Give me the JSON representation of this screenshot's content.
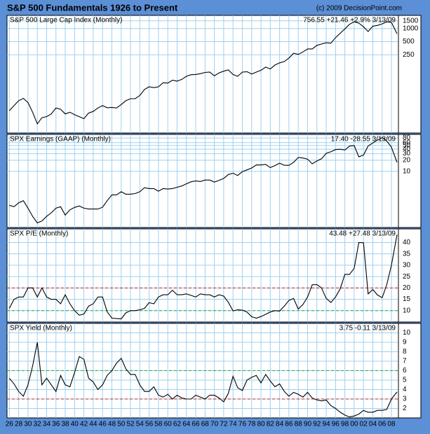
{
  "title": "S&P 500 Fundamentals 1926 to Present",
  "copyright": "(c) 2009 DecisionPoint.com",
  "chart_data": [
    {
      "type": "line",
      "title": "S&P 500 Large Cap Index (Monthly)",
      "readout": "756.55 +21.46 +2.9% 3/13/09",
      "log": true,
      "color": "#000000",
      "x": [
        1926,
        1927,
        1928,
        1929,
        1930,
        1931,
        1932,
        1933,
        1934,
        1935,
        1936,
        1937,
        1938,
        1939,
        1940,
        1941,
        1942,
        1943,
        1944,
        1945,
        1946,
        1947,
        1948,
        1949,
        1950,
        1951,
        1952,
        1953,
        1954,
        1955,
        1956,
        1957,
        1958,
        1959,
        1960,
        1961,
        1962,
        1963,
        1964,
        1965,
        1966,
        1967,
        1968,
        1969,
        1970,
        1971,
        1972,
        1973,
        1974,
        1975,
        1976,
        1977,
        1978,
        1979,
        1980,
        1981,
        1982,
        1983,
        1984,
        1985,
        1986,
        1987,
        1988,
        1989,
        1990,
        1991,
        1992,
        1993,
        1994,
        1995,
        1996,
        1997,
        1998,
        1999,
        2000,
        2001,
        2002,
        2003,
        2004,
        2005,
        2006,
        2007,
        2008,
        2009.2
      ],
      "values": [
        13,
        17,
        22,
        25,
        20,
        12,
        6.5,
        9,
        9.5,
        11,
        15,
        14,
        11,
        12,
        10.5,
        9.5,
        8.5,
        11.5,
        12.5,
        15,
        17,
        15.2,
        15.5,
        15,
        18,
        22,
        24.5,
        24.5,
        29,
        40,
        46,
        44,
        46,
        57,
        56,
        65,
        62,
        68,
        80,
        87,
        88,
        92,
        98,
        100,
        82,
        96,
        105,
        112,
        88,
        80,
        100,
        102,
        90,
        100,
        110,
        130,
        118,
        145,
        163,
        175,
        210,
        270,
        255,
        290,
        340,
        340,
        410,
        440,
        470,
        460,
        620,
        780,
        980,
        1250,
        1430,
        1330,
        1100,
        850,
        1130,
        1180,
        1280,
        1420,
        1380,
        756.55
      ],
      "ylim": [
        4,
        2000
      ],
      "yticks": [
        250,
        500,
        1000,
        1500
      ],
      "grid": true
    },
    {
      "type": "line",
      "title": "SPX Earnings (GAAP) (Monthly)",
      "readout": "17.40 -28.55 3/13/09",
      "log": true,
      "color": "#000000",
      "values": [
        1.2,
        1.1,
        1.4,
        1.6,
        1.0,
        0.6,
        0.4,
        0.45,
        0.6,
        0.75,
        1.0,
        1.1,
        0.65,
        0.9,
        1.05,
        1.15,
        1.0,
        0.95,
        0.95,
        0.95,
        1.06,
        1.6,
        2.3,
        2.3,
        2.8,
        2.4,
        2.4,
        2.5,
        2.8,
        3.6,
        3.4,
        3.4,
        2.9,
        3.4,
        3.3,
        3.4,
        3.7,
        4.0,
        4.6,
        5.2,
        5.5,
        5.3,
        5.8,
        5.8,
        5.1,
        5.7,
        6.4,
        8.2,
        8.9,
        7.7,
        9.8,
        10.9,
        12.3,
        14.9,
        14.8,
        15.4,
        12.6,
        14.3,
        16.6,
        14.6,
        14.5,
        17.5,
        23.8,
        22.9,
        21.3,
        15.9,
        19.1,
        21.9,
        30.6,
        33.9,
        38.7,
        39.7,
        37.7,
        48.2,
        50.0,
        24.7,
        27.6,
        48.7,
        58.6,
        69.9,
        81.5,
        66.2,
        45,
        17.4
      ],
      "ylim": [
        0.3,
        100
      ],
      "yticks": [
        10,
        20,
        30,
        40,
        50,
        60,
        80
      ],
      "grid": true
    },
    {
      "type": "line",
      "title": "SPX P/E (Monthly)",
      "readout": "43.48 +27.48 3/13/09",
      "log": false,
      "color": "#000000",
      "values": [
        11,
        15,
        16,
        16,
        20,
        20,
        16,
        20,
        16,
        15,
        15,
        13,
        17,
        13,
        10,
        8,
        8.5,
        12,
        13,
        16,
        16,
        9.5,
        6.7,
        6.5,
        6.4,
        9,
        10,
        10,
        10.4,
        11,
        13.5,
        13,
        16,
        17,
        17,
        19,
        17,
        17,
        17.4,
        16.7,
        16,
        17.4,
        17,
        17,
        16,
        17,
        16.4,
        13.7,
        9.9,
        10.4,
        10.2,
        9.4,
        7.3,
        6.7,
        7.4,
        8.4,
        9.4,
        10,
        9.8,
        12,
        14.5,
        15.4,
        10.7,
        12.7,
        16,
        21.4,
        21.5,
        20,
        15.4,
        13.6,
        16,
        19.6,
        26,
        26,
        28.6,
        40,
        39.9,
        17.4,
        19.3,
        16.9,
        15.7,
        21.5,
        30,
        43.48
      ],
      "ylim": [
        5,
        46
      ],
      "yticks": [
        10,
        15,
        20,
        25,
        30,
        35,
        40
      ],
      "grid": true,
      "reference_lines": [
        {
          "value": 20,
          "color": "#cc2222"
        },
        {
          "value": 10,
          "color": "#22aa44"
        }
      ]
    },
    {
      "type": "line",
      "title": "SPX Yield (Monthly)",
      "readout": "3.75 -0.11 3/13/09",
      "log": false,
      "color": "#000000",
      "values": [
        5.2,
        4.6,
        3.8,
        3.3,
        4.5,
        6.5,
        9,
        4.5,
        5.2,
        4.5,
        3.8,
        5.5,
        4.5,
        4.3,
        5.8,
        7.5,
        7.2,
        5.2,
        4.8,
        4,
        4.5,
        5.5,
        6,
        6.8,
        7.3,
        6.2,
        5.6,
        5.6,
        4.5,
        3.8,
        3.8,
        4.3,
        3.4,
        3.2,
        3.5,
        3,
        3.4,
        3.1,
        3,
        3,
        3.4,
        3.2,
        3,
        3.4,
        3.4,
        3.1,
        2.7,
        3.6,
        5.4,
        4.2,
        3.9,
        5,
        5.3,
        5.5,
        4.7,
        5.6,
        4.9,
        4.3,
        4.6,
        3.8,
        3.3,
        3.7,
        3.5,
        3.2,
        3.7,
        3.1,
        2.9,
        2.8,
        2.9,
        2.3,
        2,
        1.6,
        1.3,
        1.1,
        1.2,
        1.4,
        1.8,
        1.6,
        1.6,
        1.8,
        1.8,
        1.9,
        3,
        3.75
      ],
      "ylim": [
        1,
        11
      ],
      "yticks": [
        2,
        3,
        4,
        5,
        6,
        7,
        8,
        9,
        10
      ],
      "grid": true,
      "reference_lines": [
        {
          "value": 6,
          "color": "#22aa44"
        },
        {
          "value": 3,
          "color": "#cc2222"
        }
      ],
      "xlim": [
        1925.5,
        2009.5
      ],
      "xticks": [
        {
          "value": 1926,
          "label": "26"
        },
        {
          "value": 1928,
          "label": "28"
        },
        {
          "value": 1930,
          "label": "30"
        },
        {
          "value": 1932,
          "label": "32"
        },
        {
          "value": 1934,
          "label": "34"
        },
        {
          "value": 1936,
          "label": "36"
        },
        {
          "value": 1938,
          "label": "38"
        },
        {
          "value": 1940,
          "label": "40"
        },
        {
          "value": 1942,
          "label": "42"
        },
        {
          "value": 1944,
          "label": "44"
        },
        {
          "value": 1946,
          "label": "46"
        },
        {
          "value": 1948,
          "label": "48"
        },
        {
          "value": 1950,
          "label": "50"
        },
        {
          "value": 1952,
          "label": "52"
        },
        {
          "value": 1954,
          "label": "54"
        },
        {
          "value": 1956,
          "label": "56"
        },
        {
          "value": 1958,
          "label": "58"
        },
        {
          "value": 1960,
          "label": "60"
        },
        {
          "value": 1962,
          "label": "62"
        },
        {
          "value": 1964,
          "label": "64"
        },
        {
          "value": 1966,
          "label": "66"
        },
        {
          "value": 1968,
          "label": "68"
        },
        {
          "value": 1970,
          "label": "70"
        },
        {
          "value": 1972,
          "label": "72"
        },
        {
          "value": 1974,
          "label": "74"
        },
        {
          "value": 1976,
          "label": "76"
        },
        {
          "value": 1978,
          "label": "78"
        },
        {
          "value": 1980,
          "label": "80"
        },
        {
          "value": 1982,
          "label": "82"
        },
        {
          "value": 1984,
          "label": "84"
        },
        {
          "value": 1986,
          "label": "86"
        },
        {
          "value": 1988,
          "label": "88"
        },
        {
          "value": 1990,
          "label": "90"
        },
        {
          "value": 1992,
          "label": "92"
        },
        {
          "value": 1994,
          "label": "94"
        },
        {
          "value": 1996,
          "label": "96"
        },
        {
          "value": 1998,
          "label": "98"
        },
        {
          "value": 2000,
          "label": "00"
        },
        {
          "value": 2002,
          "label": "02"
        },
        {
          "value": 2004,
          "label": "04"
        },
        {
          "value": 2006,
          "label": "06"
        },
        {
          "value": 2008,
          "label": "08"
        }
      ]
    }
  ]
}
